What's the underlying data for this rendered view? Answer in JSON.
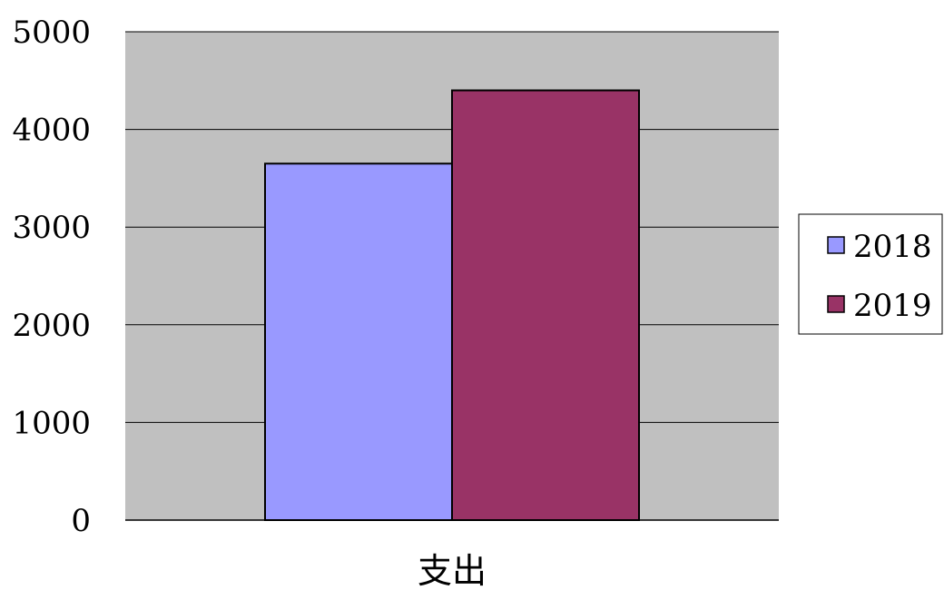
{
  "chart_data": {
    "type": "bar",
    "categories": [
      "支出"
    ],
    "series": [
      {
        "name": "2018",
        "values": [
          3650
        ],
        "color": "#9999ff"
      },
      {
        "name": "2019",
        "values": [
          4400
        ],
        "color": "#993366"
      }
    ],
    "title": "",
    "xlabel": "",
    "ylabel": "",
    "ylim": [
      0,
      5000
    ],
    "yticks": [
      "0",
      "1000",
      "2000",
      "3000",
      "4000",
      "5000"
    ],
    "grid": true,
    "legend": "right",
    "plot_background": "#c0c0c0"
  }
}
